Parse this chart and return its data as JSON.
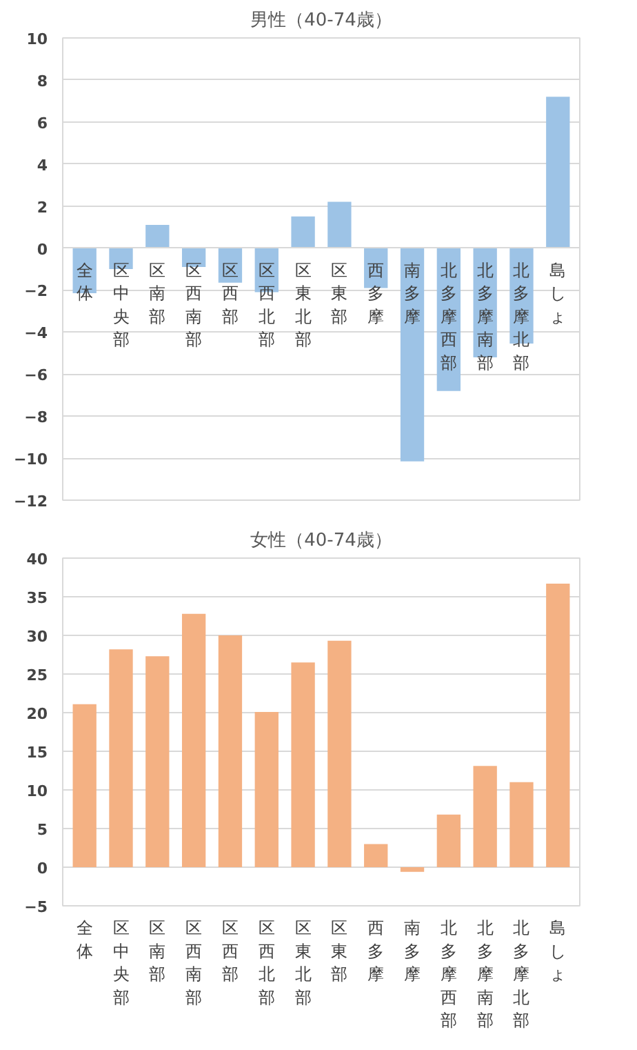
{
  "chart_data": [
    {
      "type": "bar",
      "title": "男性（40-74歳）",
      "categories": [
        "全体",
        "区中央部",
        "区南部",
        "区西南部",
        "区西部",
        "区西北部",
        "区東北部",
        "区東部",
        "西多摩",
        "南多摩",
        "北多摩西部",
        "北多摩南部",
        "北多摩北部",
        "島しょ"
      ],
      "values": [
        -2.15,
        -1.0,
        1.1,
        -0.9,
        -1.65,
        -2.1,
        1.5,
        2.2,
        -1.9,
        -10.15,
        -6.8,
        -5.2,
        -4.55,
        7.2
      ],
      "color": "#9dc3e6",
      "ylim": [
        -12,
        10
      ],
      "yticks": [
        -12,
        -10,
        -8,
        -6,
        -4,
        -2,
        0,
        2,
        4,
        6,
        8,
        10
      ],
      "grid": "y",
      "legend": false
    },
    {
      "type": "bar",
      "title": "女性（40-74歳）",
      "categories": [
        "全体",
        "区中央部",
        "区南部",
        "区西南部",
        "区西部",
        "区西北部",
        "区東北部",
        "区東部",
        "西多摩",
        "南多摩",
        "北多摩西部",
        "北多摩南部",
        "北多摩北部",
        "島しょ"
      ],
      "values": [
        21.1,
        28.2,
        27.3,
        32.8,
        30.0,
        20.1,
        26.5,
        29.3,
        3.0,
        -0.6,
        6.8,
        13.1,
        11.0,
        36.7
      ],
      "color": "#f4b183",
      "ylim": [
        -5,
        40
      ],
      "yticks": [
        -5,
        0,
        5,
        10,
        15,
        20,
        25,
        30,
        35,
        40
      ],
      "grid": "y",
      "legend": false
    }
  ]
}
